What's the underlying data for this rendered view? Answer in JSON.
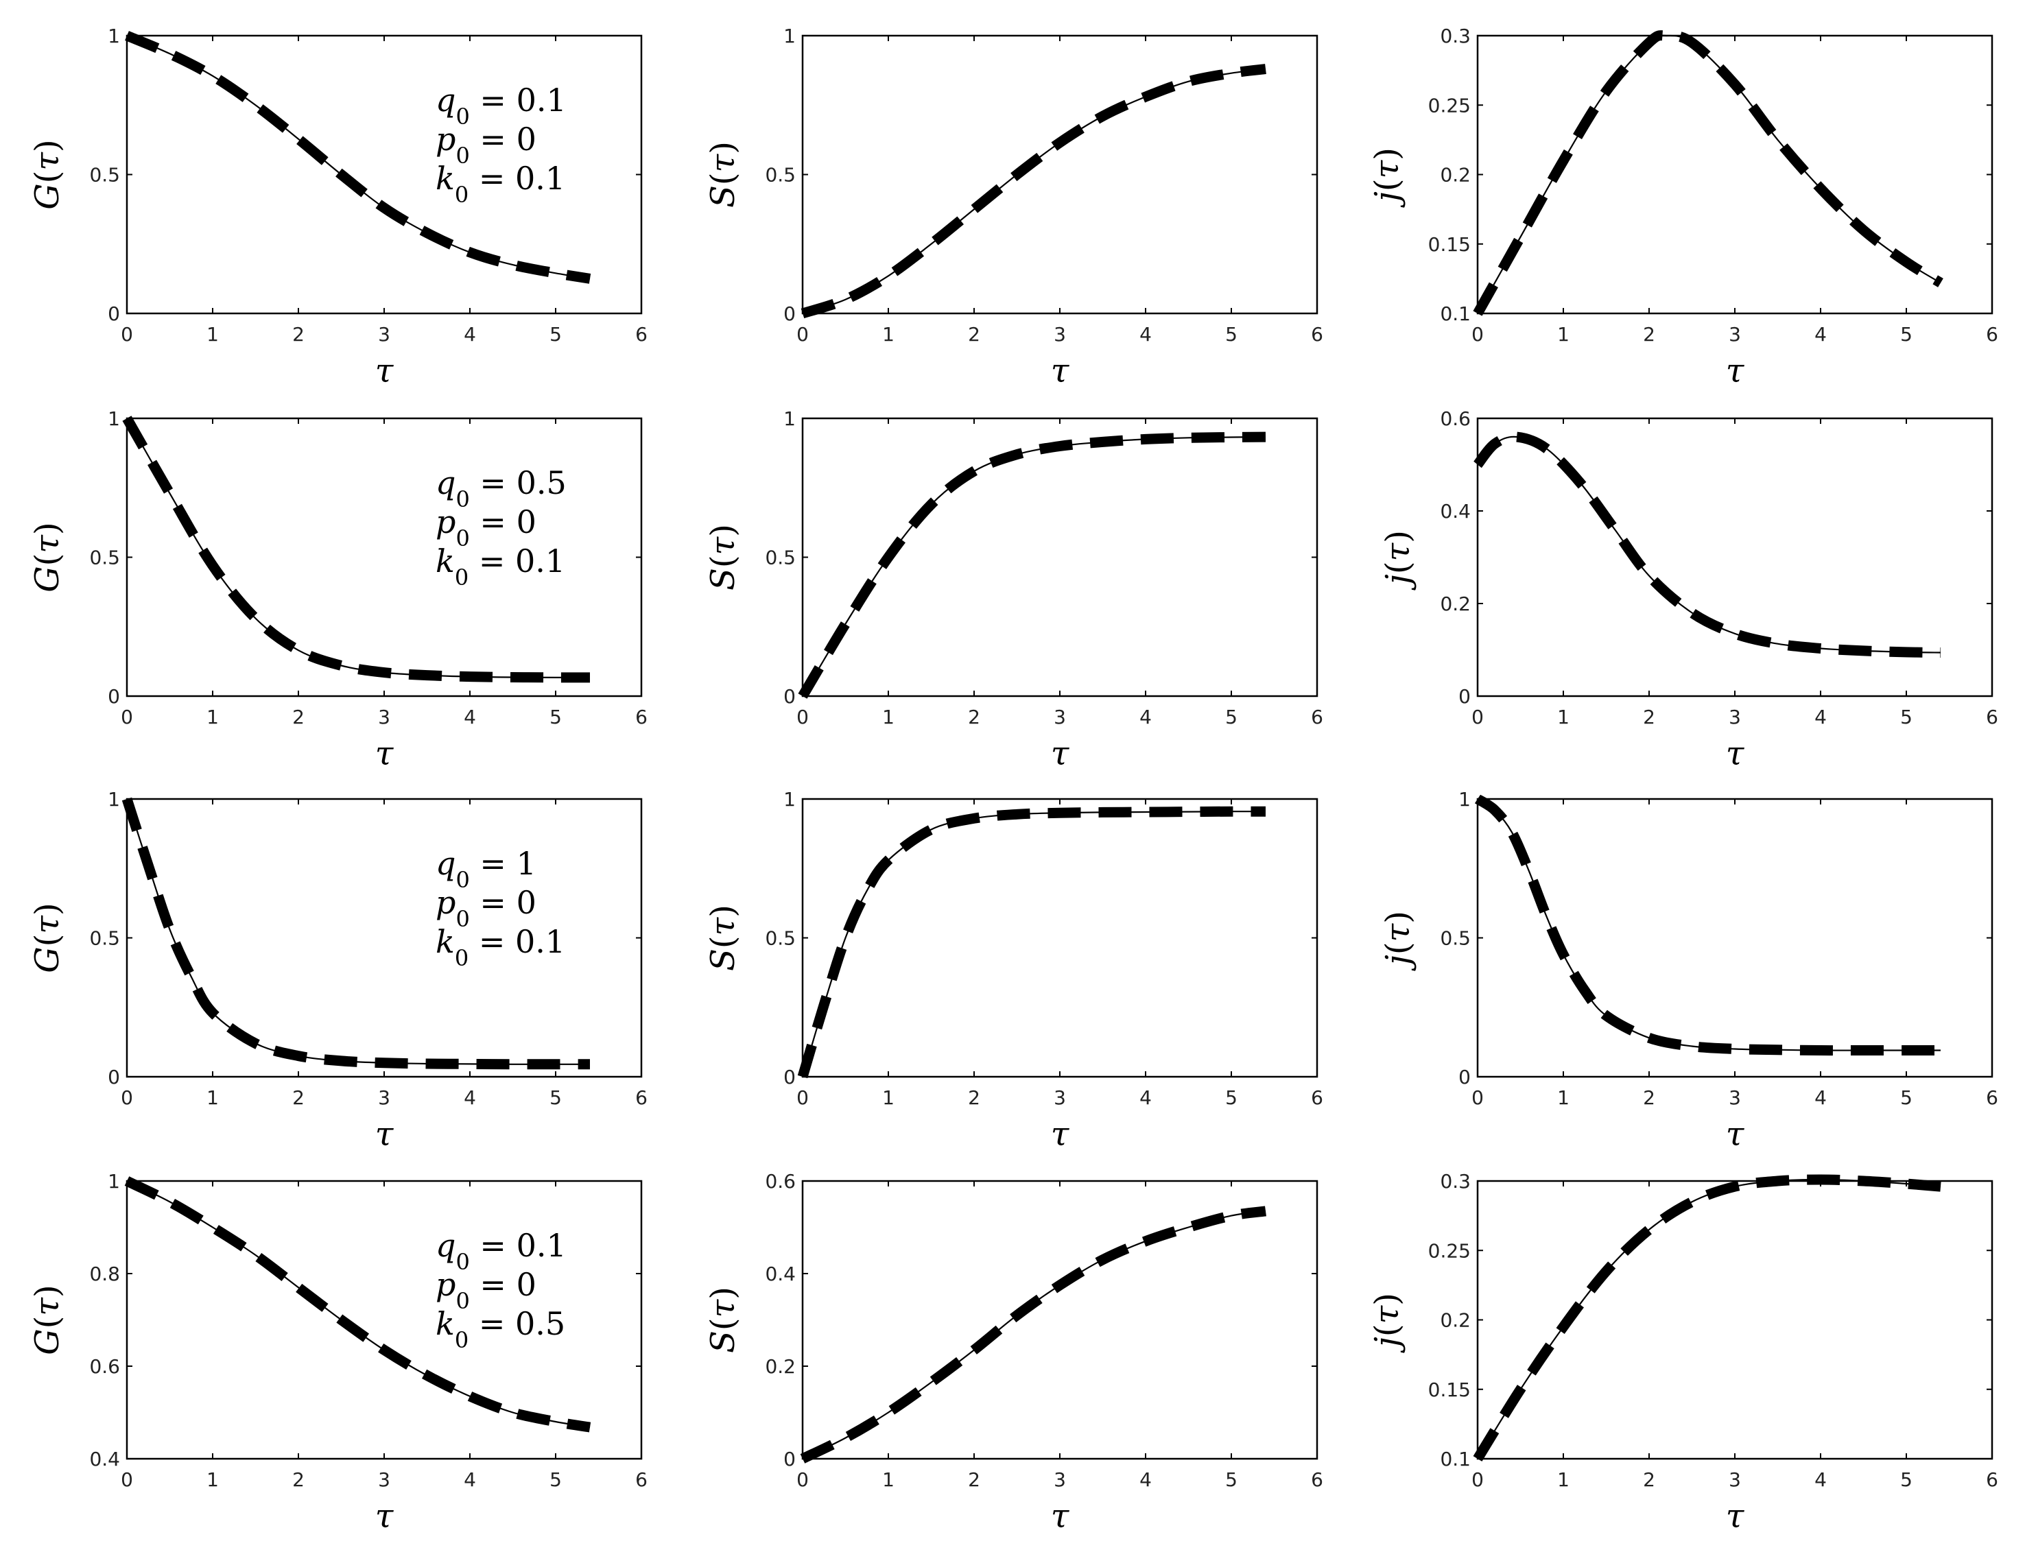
{
  "chart_data": [
    {
      "type": "line",
      "xlabel": "τ",
      "ylabel": "G(τ)",
      "xlim": [
        0,
        6
      ],
      "ylim": [
        0,
        1
      ],
      "xticks": [
        "0",
        "1",
        "2",
        "3",
        "4",
        "5",
        "6"
      ],
      "yticks": [
        "0",
        "0.5",
        "1"
      ],
      "annotation": {
        "q0": "0.1",
        "p0": "0",
        "k0": "0.1"
      },
      "x": [
        0,
        0.5,
        1,
        1.5,
        2,
        2.5,
        3,
        3.5,
        4,
        4.5,
        5,
        5.4
      ],
      "series": [
        {
          "style": "solid",
          "values": [
            1,
            0.935,
            0.855,
            0.75,
            0.628,
            0.5,
            0.38,
            0.29,
            0.22,
            0.175,
            0.145,
            0.125
          ]
        },
        {
          "style": "dashed",
          "values": [
            1,
            0.935,
            0.855,
            0.75,
            0.628,
            0.5,
            0.38,
            0.29,
            0.22,
            0.175,
            0.145,
            0.125
          ]
        }
      ]
    },
    {
      "type": "line",
      "xlabel": "τ",
      "ylabel": "S(τ)",
      "xlim": [
        0,
        6
      ],
      "ylim": [
        0,
        1
      ],
      "xticks": [
        "0",
        "1",
        "2",
        "3",
        "4",
        "5",
        "6"
      ],
      "yticks": [
        "0",
        "0.5",
        "1"
      ],
      "x": [
        0,
        0.5,
        1,
        1.5,
        2,
        2.5,
        3,
        3.5,
        4,
        4.5,
        5,
        5.4
      ],
      "series": [
        {
          "style": "solid",
          "values": [
            0,
            0.05,
            0.135,
            0.25,
            0.375,
            0.5,
            0.615,
            0.71,
            0.78,
            0.835,
            0.865,
            0.88
          ]
        },
        {
          "style": "dashed",
          "values": [
            0,
            0.05,
            0.135,
            0.25,
            0.375,
            0.5,
            0.615,
            0.71,
            0.78,
            0.835,
            0.865,
            0.88
          ]
        }
      ]
    },
    {
      "type": "line",
      "xlabel": "τ",
      "ylabel": "j(τ)",
      "xlim": [
        0,
        6
      ],
      "ylim": [
        0.1,
        0.3
      ],
      "xticks": [
        "0",
        "1",
        "2",
        "3",
        "4",
        "5",
        "6"
      ],
      "yticks": [
        "0.1",
        "0.15",
        "0.2",
        "0.25",
        "0.3"
      ],
      "x": [
        0,
        0.5,
        1,
        1.5,
        2,
        2.2,
        2.5,
        3,
        3.5,
        4,
        4.5,
        5,
        5.4
      ],
      "series": [
        {
          "style": "solid",
          "values": [
            0.1,
            0.155,
            0.21,
            0.26,
            0.295,
            0.3,
            0.295,
            0.265,
            0.225,
            0.19,
            0.16,
            0.137,
            0.122
          ]
        },
        {
          "style": "dashed",
          "values": [
            0.1,
            0.155,
            0.21,
            0.26,
            0.295,
            0.3,
            0.295,
            0.265,
            0.225,
            0.19,
            0.16,
            0.137,
            0.122
          ]
        }
      ]
    },
    {
      "type": "line",
      "xlabel": "τ",
      "ylabel": "G(τ)",
      "xlim": [
        0,
        6
      ],
      "ylim": [
        0,
        1
      ],
      "xticks": [
        "0",
        "1",
        "2",
        "3",
        "4",
        "5",
        "6"
      ],
      "yticks": [
        "0",
        "0.5",
        "1"
      ],
      "annotation": {
        "q0": "0.5",
        "p0": "0",
        "k0": "0.1"
      },
      "x": [
        0,
        0.5,
        1,
        1.5,
        2,
        2.5,
        3,
        3.5,
        4,
        4.5,
        5,
        5.4
      ],
      "series": [
        {
          "style": "solid",
          "values": [
            1,
            0.73,
            0.47,
            0.28,
            0.165,
            0.11,
            0.085,
            0.075,
            0.07,
            0.068,
            0.067,
            0.067
          ]
        },
        {
          "style": "dashed",
          "values": [
            1,
            0.73,
            0.47,
            0.28,
            0.165,
            0.11,
            0.085,
            0.075,
            0.07,
            0.068,
            0.067,
            0.067
          ]
        }
      ]
    },
    {
      "type": "line",
      "xlabel": "τ",
      "ylabel": "S(τ)",
      "xlim": [
        0,
        6
      ],
      "ylim": [
        0,
        1
      ],
      "xticks": [
        "0",
        "1",
        "2",
        "3",
        "4",
        "5",
        "6"
      ],
      "yticks": [
        "0",
        "0.5",
        "1"
      ],
      "x": [
        0,
        0.5,
        1,
        1.5,
        2,
        2.5,
        3,
        3.5,
        4,
        4.5,
        5,
        5.4
      ],
      "series": [
        {
          "style": "solid",
          "values": [
            0,
            0.26,
            0.5,
            0.69,
            0.81,
            0.87,
            0.9,
            0.915,
            0.925,
            0.93,
            0.932,
            0.933
          ]
        },
        {
          "style": "dashed",
          "values": [
            0,
            0.26,
            0.5,
            0.69,
            0.81,
            0.87,
            0.9,
            0.915,
            0.925,
            0.93,
            0.932,
            0.933
          ]
        }
      ]
    },
    {
      "type": "line",
      "xlabel": "τ",
      "ylabel": "j(τ)",
      "xlim": [
        0,
        6
      ],
      "ylim": [
        0,
        0.6
      ],
      "xticks": [
        "0",
        "1",
        "2",
        "3",
        "4",
        "5",
        "6"
      ],
      "yticks": [
        "0",
        "0.2",
        "0.4",
        "0.6"
      ],
      "x": [
        0,
        0.2,
        0.45,
        0.8,
        1.2,
        1.6,
        2,
        2.5,
        3,
        3.5,
        4,
        4.5,
        5,
        5.4
      ],
      "series": [
        {
          "style": "solid",
          "values": [
            0.5,
            0.545,
            0.56,
            0.535,
            0.46,
            0.36,
            0.26,
            0.18,
            0.135,
            0.113,
            0.103,
            0.098,
            0.095,
            0.094
          ]
        },
        {
          "style": "dashed",
          "values": [
            0.5,
            0.545,
            0.56,
            0.535,
            0.46,
            0.36,
            0.26,
            0.18,
            0.135,
            0.113,
            0.103,
            0.098,
            0.095,
            0.094
          ]
        }
      ]
    },
    {
      "type": "line",
      "xlabel": "τ",
      "ylabel": "G(τ)",
      "xlim": [
        0,
        6
      ],
      "ylim": [
        0,
        1
      ],
      "xticks": [
        "0",
        "1",
        "2",
        "3",
        "4",
        "5",
        "6"
      ],
      "yticks": [
        "0",
        "0.5",
        "1"
      ],
      "annotation": {
        "q0": "1",
        "p0": "0",
        "k0": "0.1"
      },
      "x": [
        0,
        0.25,
        0.5,
        0.75,
        1,
        1.5,
        2,
        2.5,
        3,
        3.5,
        4,
        4.5,
        5,
        5.4
      ],
      "series": [
        {
          "style": "solid",
          "values": [
            1,
            0.76,
            0.53,
            0.36,
            0.23,
            0.12,
            0.075,
            0.057,
            0.05,
            0.047,
            0.046,
            0.045,
            0.045,
            0.045
          ]
        },
        {
          "style": "dashed",
          "values": [
            1,
            0.76,
            0.53,
            0.36,
            0.23,
            0.12,
            0.075,
            0.057,
            0.05,
            0.047,
            0.046,
            0.045,
            0.045,
            0.045
          ]
        }
      ]
    },
    {
      "type": "line",
      "xlabel": "τ",
      "ylabel": "S(τ)",
      "xlim": [
        0,
        6
      ],
      "ylim": [
        0,
        1
      ],
      "xticks": [
        "0",
        "1",
        "2",
        "3",
        "4",
        "5",
        "6"
      ],
      "yticks": [
        "0",
        "0.5",
        "1"
      ],
      "x": [
        0,
        0.25,
        0.5,
        0.75,
        1,
        1.5,
        2,
        2.5,
        3,
        3.5,
        4,
        4.5,
        5,
        5.4
      ],
      "series": [
        {
          "style": "solid",
          "values": [
            0,
            0.26,
            0.5,
            0.67,
            0.78,
            0.89,
            0.93,
            0.945,
            0.95,
            0.952,
            0.953,
            0.954,
            0.955,
            0.955
          ]
        },
        {
          "style": "dashed",
          "values": [
            0,
            0.26,
            0.5,
            0.67,
            0.78,
            0.89,
            0.93,
            0.945,
            0.95,
            0.952,
            0.953,
            0.954,
            0.955,
            0.955
          ]
        }
      ]
    },
    {
      "type": "line",
      "xlabel": "τ",
      "ylabel": "j(τ)",
      "xlim": [
        0,
        6
      ],
      "ylim": [
        0,
        1
      ],
      "xticks": [
        "0",
        "1",
        "2",
        "3",
        "4",
        "5",
        "6"
      ],
      "yticks": [
        "0",
        "0.5",
        "1"
      ],
      "x": [
        0,
        0.2,
        0.4,
        0.6,
        0.8,
        1,
        1.25,
        1.5,
        2,
        2.5,
        3,
        3.5,
        4,
        4.5,
        5,
        5.4
      ],
      "series": [
        {
          "style": "solid",
          "values": [
            1,
            0.96,
            0.88,
            0.74,
            0.58,
            0.44,
            0.31,
            0.22,
            0.14,
            0.11,
            0.1,
            0.097,
            0.095,
            0.095,
            0.095,
            0.095
          ]
        },
        {
          "style": "dashed",
          "values": [
            1,
            0.96,
            0.88,
            0.74,
            0.58,
            0.44,
            0.31,
            0.22,
            0.14,
            0.11,
            0.1,
            0.097,
            0.095,
            0.095,
            0.095,
            0.095
          ]
        }
      ]
    },
    {
      "type": "line",
      "xlabel": "τ",
      "ylabel": "G(τ)",
      "xlim": [
        0,
        6
      ],
      "ylim": [
        0.4,
        1
      ],
      "xticks": [
        "0",
        "1",
        "2",
        "3",
        "4",
        "5",
        "6"
      ],
      "yticks": [
        "0.4",
        "0.6",
        "0.8",
        "1"
      ],
      "annotation": {
        "q0": "0.1",
        "p0": "0",
        "k0": "0.5"
      },
      "x": [
        0,
        0.5,
        1,
        1.5,
        2,
        2.5,
        3,
        3.5,
        4,
        4.5,
        5,
        5.4
      ],
      "series": [
        {
          "style": "solid",
          "values": [
            1,
            0.955,
            0.9,
            0.84,
            0.77,
            0.7,
            0.635,
            0.58,
            0.535,
            0.5,
            0.48,
            0.468
          ]
        },
        {
          "style": "dashed",
          "values": [
            1,
            0.955,
            0.9,
            0.84,
            0.77,
            0.7,
            0.635,
            0.58,
            0.535,
            0.5,
            0.48,
            0.468
          ]
        }
      ]
    },
    {
      "type": "line",
      "xlabel": "τ",
      "ylabel": "S(τ)",
      "xlim": [
        0,
        6
      ],
      "ylim": [
        0,
        0.6
      ],
      "xticks": [
        "0",
        "1",
        "2",
        "3",
        "4",
        "5",
        "6"
      ],
      "yticks": [
        "0",
        "0.2",
        "0.4",
        "0.6"
      ],
      "x": [
        0,
        0.5,
        1,
        1.5,
        2,
        2.5,
        3,
        3.5,
        4,
        4.5,
        5,
        5.4
      ],
      "series": [
        {
          "style": "solid",
          "values": [
            0,
            0.045,
            0.1,
            0.165,
            0.235,
            0.31,
            0.375,
            0.43,
            0.47,
            0.5,
            0.525,
            0.535
          ]
        },
        {
          "style": "dashed",
          "values": [
            0,
            0.045,
            0.1,
            0.165,
            0.235,
            0.31,
            0.375,
            0.43,
            0.47,
            0.5,
            0.525,
            0.535
          ]
        }
      ]
    },
    {
      "type": "line",
      "xlabel": "τ",
      "ylabel": "j(τ)",
      "xlim": [
        0,
        6
      ],
      "ylim": [
        0.1,
        0.3
      ],
      "xticks": [
        "0",
        "1",
        "2",
        "3",
        "4",
        "5",
        "6"
      ],
      "yticks": [
        "0.1",
        "0.15",
        "0.2",
        "0.25",
        "0.3"
      ],
      "x": [
        0,
        0.5,
        1,
        1.5,
        2,
        2.5,
        3,
        3.5,
        4,
        4.5,
        5,
        5.4
      ],
      "series": [
        {
          "style": "solid",
          "values": [
            0.1,
            0.15,
            0.195,
            0.235,
            0.265,
            0.285,
            0.296,
            0.3,
            0.301,
            0.3,
            0.298,
            0.296
          ]
        },
        {
          "style": "dashed",
          "values": [
            0.1,
            0.15,
            0.195,
            0.235,
            0.265,
            0.285,
            0.296,
            0.3,
            0.301,
            0.3,
            0.298,
            0.296
          ]
        }
      ]
    }
  ]
}
